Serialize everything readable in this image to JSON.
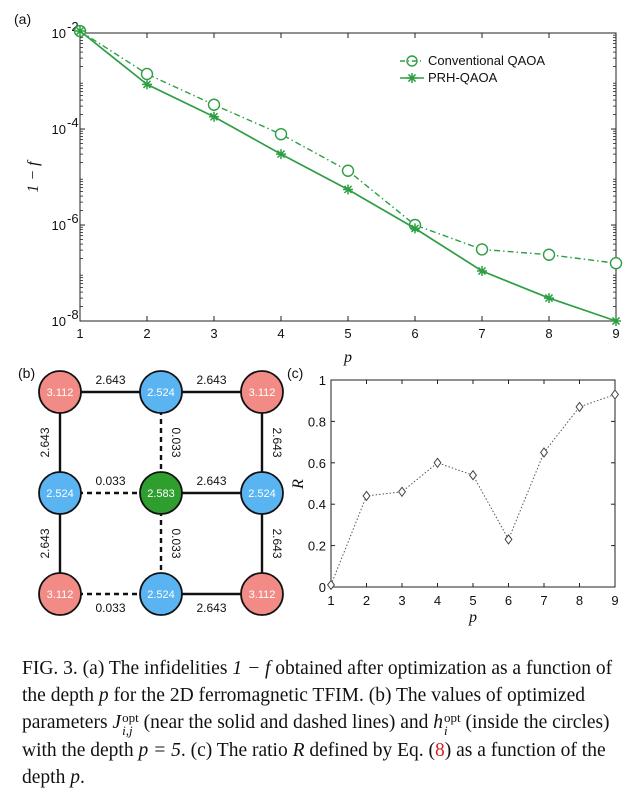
{
  "panel_a": {
    "label": "(a)",
    "chart_data": {
      "type": "line",
      "xlabel": "p",
      "ylabel": "1 − f",
      "yscale": "log",
      "xlim": [
        1,
        9
      ],
      "ylim": [
        1e-08,
        0.01
      ],
      "x": [
        1,
        2,
        3,
        4,
        5,
        6,
        7,
        8,
        9
      ],
      "x_tick_labels": [
        "1",
        "2",
        "3",
        "4",
        "5",
        "6",
        "7",
        "8",
        "9"
      ],
      "y_ticks": [
        1e-08,
        1e-06,
        0.0001,
        0.01
      ],
      "y_tick_labels": [
        {
          "base": "10",
          "exp": "-8"
        },
        {
          "base": "10",
          "exp": "-6"
        },
        {
          "base": "10",
          "exp": "-4"
        },
        {
          "base": "10",
          "exp": "-2"
        }
      ],
      "legend_position": "top-right",
      "series": [
        {
          "name": "Conventional QAOA",
          "marker": "circle",
          "line": "dash-dot",
          "color": "#2e9e44",
          "values": [
            0.011,
            0.0014,
            0.00032,
            7.8e-05,
            1.35e-05,
            1e-06,
            3.1e-07,
            2.4e-07,
            1.6e-07
          ]
        },
        {
          "name": "PRH-QAOA",
          "marker": "star",
          "line": "solid",
          "color": "#2e9e44",
          "values": [
            0.011,
            0.00085,
            0.00018,
            3e-05,
            5.5e-06,
            8.5e-07,
            1.1e-07,
            3e-08,
            1e-08
          ]
        }
      ]
    }
  },
  "panel_b": {
    "label": "(b)",
    "nodes": [
      {
        "value": "3.112",
        "color": "#f28b86"
      },
      {
        "value": "2.524",
        "color": "#5ab4f2"
      },
      {
        "value": "3.112",
        "color": "#f28b86"
      },
      {
        "value": "2.524",
        "color": "#5ab4f2"
      },
      {
        "value": "2.583",
        "color": "#2e9e2e"
      },
      {
        "value": "2.524",
        "color": "#5ab4f2"
      },
      {
        "value": "3.112",
        "color": "#f28b86"
      },
      {
        "value": "2.524",
        "color": "#5ab4f2"
      },
      {
        "value": "3.112",
        "color": "#f28b86"
      }
    ],
    "edges": [
      {
        "label": "2.643",
        "style": "solid"
      },
      {
        "label": "2.643",
        "style": "solid"
      },
      {
        "label": "0.033",
        "style": "dashed"
      },
      {
        "label": "0.033",
        "style": "dashed"
      },
      {
        "label": "2.643",
        "style": "solid"
      },
      {
        "label": "2.643",
        "style": "solid"
      },
      {
        "label": "2.643",
        "style": "solid"
      },
      {
        "label": "0.033",
        "style": "dashed"
      },
      {
        "label": "2.643",
        "style": "solid"
      },
      {
        "label": "2.643",
        "style": "solid"
      },
      {
        "label": "0.033",
        "style": "dashed"
      },
      {
        "label": "2.643",
        "style": "solid"
      }
    ]
  },
  "panel_c": {
    "label": "(c)",
    "chart_data": {
      "type": "line",
      "xlabel": "p",
      "ylabel": "R",
      "xlim": [
        1,
        9
      ],
      "ylim": [
        0,
        1
      ],
      "x": [
        1,
        2,
        3,
        4,
        5,
        6,
        7,
        8,
        9
      ],
      "x_tick_labels": [
        "1",
        "2",
        "3",
        "4",
        "5",
        "6",
        "7",
        "8",
        "9"
      ],
      "y_ticks": [
        0,
        0.2,
        0.4,
        0.6,
        0.8,
        1
      ],
      "y_tick_labels": [
        "0",
        "0.2",
        "0.4",
        "0.6",
        "0.8",
        "1"
      ],
      "series": [
        {
          "marker": "diamond",
          "line": "dotted",
          "color": "#555555",
          "values": [
            0.01,
            0.44,
            0.46,
            0.6,
            0.54,
            0.23,
            0.65,
            0.87,
            0.93
          ]
        }
      ]
    }
  },
  "caption": {
    "fig": "FIG. 3.",
    "a_pre": "(a) The infidelities ",
    "a_expr": "1 − f",
    "a_post": " obtained after optimization as a function of the depth ",
    "p": "p",
    "a_end": " for the 2D ferromagnetic TFIM. (b) The values of optimized parameters ",
    "J": "J",
    "J_sup": "opt",
    "J_sub": "i,j",
    "b_mid": " (near the solid and dashed lines) and ",
    "h": "h",
    "h_sup": "opt",
    "h_sub": "i",
    "b_end": " (inside the circles) with the depth ",
    "p_eq": "p = 5",
    "c_pre": ". (c) The ratio ",
    "R": "R",
    "c_mid": " defined by Eq. (",
    "eq_ref": "8",
    "c_post": ") as a function of the depth ",
    "end": "."
  }
}
